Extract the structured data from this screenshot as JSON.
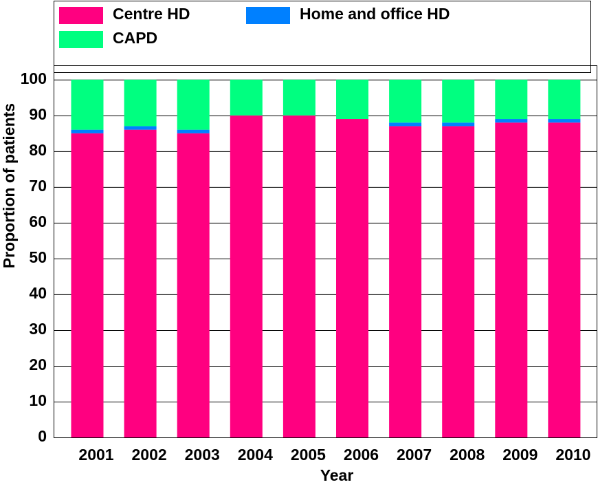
{
  "chart_data": {
    "type": "stacked_bar",
    "xlabel": "Year",
    "ylabel": "Proportion of patients",
    "categories": [
      "2001",
      "2002",
      "2003",
      "2004",
      "2005",
      "2006",
      "2007",
      "2008",
      "2009",
      "2010"
    ],
    "series": [
      {
        "name": "Centre HD",
        "color": "#ff0080",
        "values": [
          85,
          86,
          85,
          90,
          90,
          89,
          87,
          87,
          88,
          88
        ]
      },
      {
        "name": "Home and office HD",
        "color": "#0080ff",
        "values": [
          1,
          1,
          1,
          0,
          0,
          0,
          1,
          1,
          1,
          1
        ]
      },
      {
        "name": "CAPD",
        "color": "#00ff80",
        "values": [
          14,
          13,
          14,
          10,
          10,
          11,
          12,
          12,
          11,
          11
        ]
      }
    ],
    "ylim": [
      0,
      104
    ],
    "yticks": [
      0,
      10,
      20,
      30,
      40,
      50,
      60,
      70,
      80,
      90,
      100
    ],
    "grid": true
  }
}
